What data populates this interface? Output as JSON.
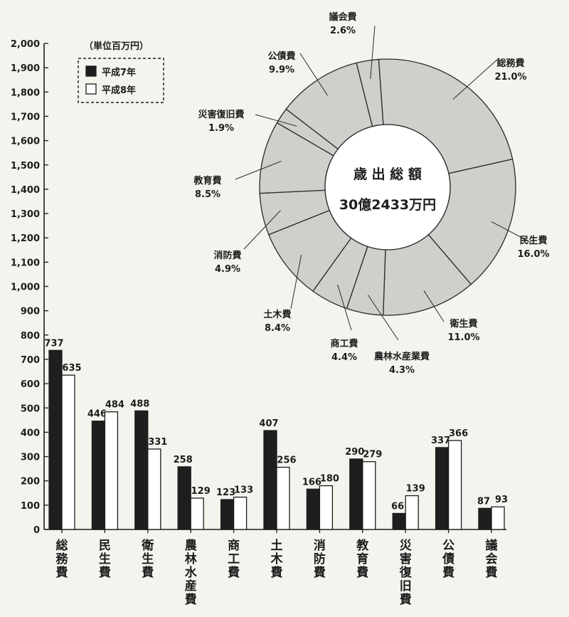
{
  "colors": {
    "series_1": "#1e1e1e",
    "series_2": "#ffffff",
    "donut_fill": "#cfcfcb",
    "donut_stroke": "#2a2a2a",
    "axis": "#1c1c1c"
  },
  "chart_data": [
    {
      "type": "bar",
      "unit": "（単位百万円）",
      "categories": [
        "総務費",
        "民生費",
        "衛生費",
        "農林水産費",
        "商工費",
        "土木費",
        "消防費",
        "教育費",
        "災害復旧費",
        "公債費",
        "議会費"
      ],
      "series": [
        {
          "name": "平成7年",
          "values": [
            737,
            446,
            488,
            258,
            123,
            407,
            166,
            290,
            66,
            337,
            87
          ]
        },
        {
          "name": "平成8年",
          "values": [
            635,
            484,
            331,
            129,
            133,
            256,
            180,
            279,
            139,
            366,
            93
          ]
        }
      ],
      "ylim": [
        0,
        2000
      ],
      "yticks": [
        "0",
        "100",
        "200",
        "300",
        "400",
        "500",
        "600",
        "700",
        "800",
        "900",
        "1,000",
        "1,100",
        "1,200",
        "1,300",
        "1,400",
        "1,500",
        "1,600",
        "1,700",
        "1,800",
        "1,900",
        "2,000"
      ],
      "legend_position": "top-left"
    },
    {
      "type": "pie",
      "center_title": "歳 出 総 額",
      "center_value": "30億2433万円",
      "slices": [
        {
          "label": "総務費",
          "value": 21.0,
          "text": "21.0%"
        },
        {
          "label": "民生費",
          "value": 16.0,
          "text": "16.0%"
        },
        {
          "label": "衛生費",
          "value": 11.0,
          "text": "11.0%"
        },
        {
          "label": "農林水産業費",
          "value": 4.3,
          "text": "4.3%"
        },
        {
          "label": "商工費",
          "value": 4.4,
          "text": "4.4%"
        },
        {
          "label": "土木費",
          "value": 8.4,
          "text": "8.4%"
        },
        {
          "label": "消防費",
          "value": 4.9,
          "text": "4.9%"
        },
        {
          "label": "教育費",
          "value": 8.5,
          "text": "8.5%"
        },
        {
          "label": "災害復旧費",
          "value": 1.9,
          "text": "1.9%"
        },
        {
          "label": "公債費",
          "value": 9.9,
          "text": "9.9%"
        },
        {
          "label": "議会費",
          "value": 2.6,
          "text": "2.6%"
        }
      ]
    }
  ]
}
